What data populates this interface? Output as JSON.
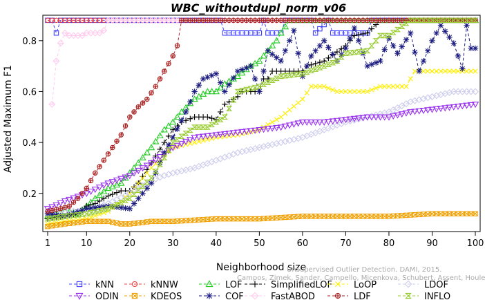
{
  "chart_data": {
    "type": "line",
    "title": "WBC_withoutdupl_norm_v06",
    "xlabel": "Neighborhood size",
    "ylabel": "Adjusted Maximum F1",
    "xlim": [
      1,
      100
    ],
    "ylim": [
      0.05,
      0.9
    ],
    "x_ticks": [
      1,
      10,
      20,
      30,
      40,
      50,
      60,
      70,
      80,
      90,
      100
    ],
    "y_ticks": [
      0.2,
      0.4,
      0.6,
      0.8
    ],
    "legend_position": "bottom",
    "grid": false,
    "credit": [
      "Unsupervised Outlier Detection. DAMI, 2015.",
      "Campos, Zimek, Sander, Campello, Micenkova, Schubert, Assent, Houle"
    ],
    "series": [
      {
        "name": "kNN",
        "color": "#4040ff",
        "marker": "square",
        "points": [
          [
            1,
            0.88
          ],
          [
            2,
            0.88
          ],
          [
            3,
            0.83
          ],
          [
            4,
            0.88
          ],
          [
            10,
            0.88
          ],
          [
            20,
            0.88
          ],
          [
            30,
            0.88
          ],
          [
            41,
            0.88
          ],
          [
            42,
            0.83
          ],
          [
            50,
            0.83
          ],
          [
            51,
            0.88
          ],
          [
            52,
            0.83
          ],
          [
            55,
            0.83
          ],
          [
            56,
            0.88
          ],
          [
            62,
            0.88
          ],
          [
            63,
            0.83
          ],
          [
            66,
            0.88
          ],
          [
            67,
            0.83
          ],
          [
            75,
            0.83
          ],
          [
            76,
            0.88
          ],
          [
            100,
            0.88
          ]
        ]
      },
      {
        "name": "kNNW",
        "color": "#e84040",
        "marker": "circle",
        "points": [
          [
            1,
            0.88
          ],
          [
            10,
            0.88
          ],
          [
            20,
            0.88
          ],
          [
            30,
            0.88
          ],
          [
            40,
            0.88
          ],
          [
            50,
            0.88
          ],
          [
            60,
            0.88
          ],
          [
            70,
            0.88
          ],
          [
            80,
            0.88
          ],
          [
            90,
            0.88
          ],
          [
            100,
            0.88
          ]
        ]
      },
      {
        "name": "LOF",
        "color": "#22cc22",
        "marker": "triangle-up",
        "points": [
          [
            1,
            0.11
          ],
          [
            5,
            0.13
          ],
          [
            8,
            0.12
          ],
          [
            10,
            0.15
          ],
          [
            12,
            0.18
          ],
          [
            15,
            0.22
          ],
          [
            18,
            0.24
          ],
          [
            20,
            0.28
          ],
          [
            22,
            0.32
          ],
          [
            25,
            0.38
          ],
          [
            28,
            0.45
          ],
          [
            30,
            0.48
          ],
          [
            32,
            0.52
          ],
          [
            35,
            0.57
          ],
          [
            38,
            0.6
          ],
          [
            40,
            0.6
          ],
          [
            42,
            0.63
          ],
          [
            45,
            0.66
          ],
          [
            48,
            0.7
          ],
          [
            50,
            0.72
          ],
          [
            52,
            0.76
          ],
          [
            54,
            0.8
          ],
          [
            55,
            0.83
          ],
          [
            57,
            0.88
          ],
          [
            60,
            0.88
          ],
          [
            70,
            0.88
          ],
          [
            80,
            0.88
          ],
          [
            90,
            0.88
          ],
          [
            100,
            0.88
          ]
        ]
      },
      {
        "name": "SimplifiedLOF",
        "color": "#000000",
        "marker": "plus",
        "points": [
          [
            1,
            0.1
          ],
          [
            5,
            0.11
          ],
          [
            8,
            0.12
          ],
          [
            10,
            0.15
          ],
          [
            12,
            0.16
          ],
          [
            15,
            0.19
          ],
          [
            18,
            0.21
          ],
          [
            20,
            0.21
          ],
          [
            22,
            0.24
          ],
          [
            25,
            0.32
          ],
          [
            28,
            0.4
          ],
          [
            30,
            0.45
          ],
          [
            32,
            0.48
          ],
          [
            35,
            0.5
          ],
          [
            38,
            0.5
          ],
          [
            40,
            0.49
          ],
          [
            42,
            0.55
          ],
          [
            45,
            0.58
          ],
          [
            46,
            0.6
          ],
          [
            50,
            0.6
          ],
          [
            51,
            0.65
          ],
          [
            52,
            0.65
          ],
          [
            53,
            0.68
          ],
          [
            60,
            0.68
          ],
          [
            61,
            0.7
          ],
          [
            65,
            0.72
          ],
          [
            70,
            0.78
          ],
          [
            72,
            0.82
          ],
          [
            75,
            0.83
          ],
          [
            78,
            0.88
          ],
          [
            80,
            0.88
          ],
          [
            90,
            0.88
          ],
          [
            100,
            0.88
          ]
        ]
      },
      {
        "name": "LoOP",
        "color": "#ffee00",
        "marker": "cross",
        "points": [
          [
            1,
            0.08
          ],
          [
            5,
            0.09
          ],
          [
            10,
            0.1
          ],
          [
            15,
            0.13
          ],
          [
            20,
            0.2
          ],
          [
            25,
            0.3
          ],
          [
            28,
            0.35
          ],
          [
            30,
            0.38
          ],
          [
            35,
            0.4
          ],
          [
            40,
            0.42
          ],
          [
            45,
            0.43
          ],
          [
            50,
            0.45
          ],
          [
            55,
            0.5
          ],
          [
            60,
            0.57
          ],
          [
            62,
            0.62
          ],
          [
            65,
            0.62
          ],
          [
            68,
            0.6
          ],
          [
            75,
            0.6
          ],
          [
            78,
            0.62
          ],
          [
            84,
            0.62
          ],
          [
            86,
            0.68
          ],
          [
            100,
            0.68
          ]
        ]
      },
      {
        "name": "LDOF",
        "color": "#ccccee",
        "marker": "diamond",
        "points": [
          [
            1,
            0.12
          ],
          [
            5,
            0.13
          ],
          [
            10,
            0.13
          ],
          [
            15,
            0.16
          ],
          [
            20,
            0.2
          ],
          [
            25,
            0.25
          ],
          [
            28,
            0.27
          ],
          [
            30,
            0.28
          ],
          [
            35,
            0.3
          ],
          [
            40,
            0.33
          ],
          [
            45,
            0.36
          ],
          [
            50,
            0.38
          ],
          [
            55,
            0.4
          ],
          [
            60,
            0.42
          ],
          [
            65,
            0.45
          ],
          [
            70,
            0.48
          ],
          [
            75,
            0.5
          ],
          [
            80,
            0.52
          ],
          [
            85,
            0.56
          ],
          [
            90,
            0.58
          ],
          [
            95,
            0.6
          ],
          [
            100,
            0.6
          ]
        ]
      },
      {
        "name": "ODIN",
        "color": "#9933ee",
        "marker": "triangle-down",
        "points": [
          [
            1,
            0.14
          ],
          [
            5,
            0.17
          ],
          [
            10,
            0.2
          ],
          [
            15,
            0.24
          ],
          [
            20,
            0.27
          ],
          [
            25,
            0.32
          ],
          [
            30,
            0.38
          ],
          [
            35,
            0.42
          ],
          [
            40,
            0.43
          ],
          [
            45,
            0.44
          ],
          [
            50,
            0.45
          ],
          [
            55,
            0.46
          ],
          [
            60,
            0.48
          ],
          [
            65,
            0.48
          ],
          [
            70,
            0.49
          ],
          [
            75,
            0.5
          ],
          [
            80,
            0.5
          ],
          [
            85,
            0.52
          ],
          [
            90,
            0.53
          ],
          [
            95,
            0.54
          ],
          [
            100,
            0.55
          ]
        ]
      },
      {
        "name": "KDEOS",
        "color": "#f0a000",
        "marker": "square-x",
        "points": [
          [
            1,
            0.07
          ],
          [
            5,
            0.08
          ],
          [
            10,
            0.09
          ],
          [
            15,
            0.09
          ],
          [
            18,
            0.08
          ],
          [
            20,
            0.08
          ],
          [
            25,
            0.09
          ],
          [
            30,
            0.09
          ],
          [
            40,
            0.1
          ],
          [
            50,
            0.1
          ],
          [
            60,
            0.11
          ],
          [
            70,
            0.11
          ],
          [
            80,
            0.11
          ],
          [
            90,
            0.12
          ],
          [
            100,
            0.12
          ]
        ]
      },
      {
        "name": "COF",
        "color": "#1a1a80",
        "marker": "asterisk",
        "points": [
          [
            1,
            0.12
          ],
          [
            5,
            0.11
          ],
          [
            10,
            0.14
          ],
          [
            15,
            0.15
          ],
          [
            20,
            0.14
          ],
          [
            22,
            0.18
          ],
          [
            25,
            0.24
          ],
          [
            28,
            0.36
          ],
          [
            30,
            0.42
          ],
          [
            33,
            0.52
          ],
          [
            35,
            0.6
          ],
          [
            37,
            0.65
          ],
          [
            40,
            0.67
          ],
          [
            42,
            0.6
          ],
          [
            45,
            0.68
          ],
          [
            48,
            0.7
          ],
          [
            50,
            0.6
          ],
          [
            52,
            0.76
          ],
          [
            55,
            0.72
          ],
          [
            58,
            0.84
          ],
          [
            60,
            0.66
          ],
          [
            62,
            0.74
          ],
          [
            65,
            0.8
          ],
          [
            68,
            0.72
          ],
          [
            70,
            0.77
          ],
          [
            72,
            0.85
          ],
          [
            75,
            0.7
          ],
          [
            78,
            0.72
          ],
          [
            80,
            0.81
          ],
          [
            82,
            0.75
          ],
          [
            85,
            0.83
          ],
          [
            87,
            0.68
          ],
          [
            90,
            0.8
          ],
          [
            92,
            0.86
          ],
          [
            95,
            0.79
          ],
          [
            97,
            0.69
          ],
          [
            98,
            0.86
          ],
          [
            99,
            0.77
          ],
          [
            100,
            0.77
          ]
        ]
      },
      {
        "name": "FastABOD",
        "color": "#ffccee",
        "marker": "diamond-dot",
        "points": [
          [
            2,
            0.55
          ],
          [
            3,
            0.72
          ],
          [
            4,
            0.79
          ],
          [
            5,
            0.83
          ],
          [
            6,
            0.82
          ],
          [
            7,
            0.82
          ],
          [
            8,
            0.82
          ],
          [
            9,
            0.82
          ],
          [
            10,
            0.83
          ],
          [
            12,
            0.83
          ],
          [
            13,
            0.83
          ],
          [
            14,
            0.84
          ],
          [
            15,
            0.88
          ],
          [
            20,
            0.88
          ],
          [
            30,
            0.88
          ],
          [
            40,
            0.88
          ],
          [
            50,
            0.88
          ],
          [
            60,
            0.88
          ],
          [
            70,
            0.88
          ],
          [
            80,
            0.88
          ],
          [
            90,
            0.88
          ],
          [
            100,
            0.88
          ]
        ]
      },
      {
        "name": "LDF",
        "color": "#aa2222",
        "marker": "circle-plus",
        "points": [
          [
            1,
            0.13
          ],
          [
            4,
            0.14
          ],
          [
            6,
            0.15
          ],
          [
            8,
            0.18
          ],
          [
            10,
            0.22
          ],
          [
            12,
            0.28
          ],
          [
            14,
            0.33
          ],
          [
            16,
            0.38
          ],
          [
            18,
            0.43
          ],
          [
            20,
            0.5
          ],
          [
            22,
            0.54
          ],
          [
            24,
            0.57
          ],
          [
            26,
            0.62
          ],
          [
            28,
            0.68
          ],
          [
            30,
            0.74
          ],
          [
            31,
            0.78
          ],
          [
            32,
            0.88
          ],
          [
            40,
            0.88
          ],
          [
            50,
            0.88
          ],
          [
            60,
            0.88
          ],
          [
            70,
            0.88
          ],
          [
            80,
            0.88
          ],
          [
            90,
            0.88
          ],
          [
            100,
            0.88
          ]
        ]
      },
      {
        "name": "INFLO",
        "color": "#99cc33",
        "marker": "hourglass",
        "points": [
          [
            1,
            0.1
          ],
          [
            5,
            0.11
          ],
          [
            10,
            0.12
          ],
          [
            15,
            0.14
          ],
          [
            20,
            0.18
          ],
          [
            25,
            0.26
          ],
          [
            28,
            0.34
          ],
          [
            30,
            0.4
          ],
          [
            35,
            0.46
          ],
          [
            38,
            0.46
          ],
          [
            40,
            0.48
          ],
          [
            42,
            0.5
          ],
          [
            45,
            0.6
          ],
          [
            50,
            0.62
          ],
          [
            55,
            0.66
          ],
          [
            60,
            0.67
          ],
          [
            65,
            0.7
          ],
          [
            68,
            0.72
          ],
          [
            70,
            0.75
          ],
          [
            75,
            0.76
          ],
          [
            78,
            0.82
          ],
          [
            80,
            0.82
          ],
          [
            85,
            0.88
          ],
          [
            90,
            0.88
          ],
          [
            100,
            0.88
          ]
        ]
      }
    ]
  }
}
